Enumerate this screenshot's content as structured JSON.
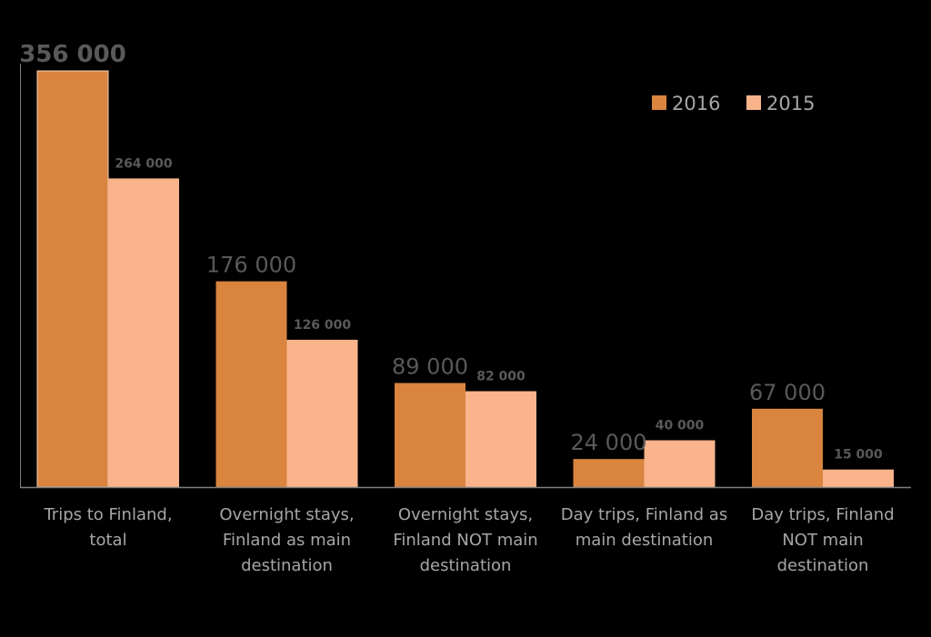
{
  "chart_data": {
    "type": "bar",
    "categories": [
      [
        "Trips to Finland,",
        "total"
      ],
      [
        "Overnight stays,",
        "Finland as main",
        "destination"
      ],
      [
        "Overnight stays,",
        "Finland NOT main",
        "destination"
      ],
      [
        "Day trips, Finland as",
        "main destination"
      ],
      [
        "Day trips, Finland",
        "NOT main",
        "destination"
      ]
    ],
    "series": [
      {
        "name": "2016",
        "values": [
          356000,
          176000,
          89000,
          24000,
          67000
        ],
        "labels": [
          "356 000",
          "176 000",
          "89 000",
          "24 000",
          "67 000"
        ],
        "color": "#d9843f"
      },
      {
        "name": "2015",
        "values": [
          264000,
          126000,
          82000,
          40000,
          15000
        ],
        "labels": [
          "264 000",
          "126 000",
          "82 000",
          "40 000",
          "15 000"
        ],
        "color": "#f9b48c"
      }
    ],
    "ylim": [
      0,
      360000
    ],
    "grid": false,
    "legend_position": "top-right",
    "colors": {
      "background": "#000000",
      "axis": "#808080",
      "label_text": "#a6a6a6",
      "value_text": "#595959"
    }
  }
}
